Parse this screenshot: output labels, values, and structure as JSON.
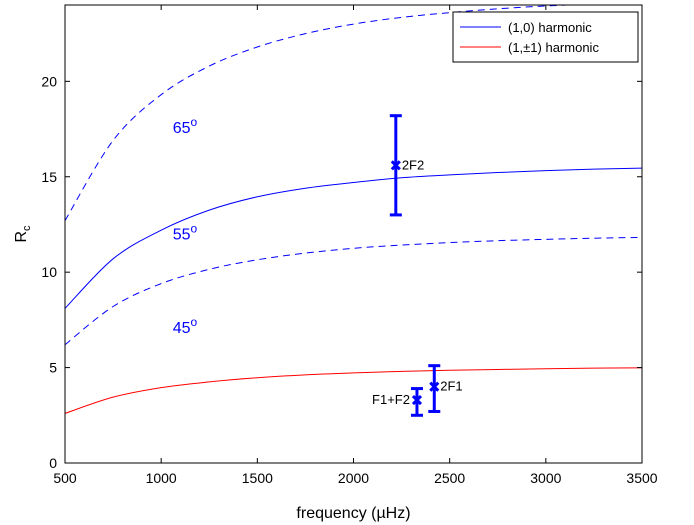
{
  "chart_data": {
    "type": "line",
    "title": "",
    "xlabel": "frequency (µHz)",
    "ylabel_main": "R",
    "ylabel_sub": "c",
    "xlim": [
      500,
      3500
    ],
    "ylim": [
      0,
      24
    ],
    "xticks": [
      500,
      1000,
      1500,
      2000,
      2500,
      3000,
      3500
    ],
    "yticks": [
      0,
      5,
      10,
      15,
      20
    ],
    "grid": false,
    "legend_position": "top-right",
    "colors": {
      "blue": "#0000ff",
      "red": "#ff0000"
    },
    "legend": [
      {
        "label": "(1,0) harmonic",
        "color": "#0000ff"
      },
      {
        "label": "(1,±1) harmonic",
        "color": "#ff0000"
      }
    ],
    "series": [
      {
        "group": "(1,0) harmonic",
        "angle": "65",
        "style": "dashed",
        "color": "#0000ff",
        "x": [
          500,
          750,
          1000,
          1250,
          1500,
          1750,
          2000,
          2250,
          2500,
          2750,
          3000,
          3250,
          3500
        ],
        "y": [
          12.7,
          16.9,
          19.3,
          20.8,
          21.8,
          22.5,
          23.0,
          23.35,
          23.6,
          23.8,
          23.95,
          24.05,
          24.1
        ]
      },
      {
        "group": "(1,0) harmonic",
        "angle": "55",
        "style": "solid",
        "color": "#0000ff",
        "x": [
          500,
          750,
          1000,
          1250,
          1500,
          1750,
          2000,
          2250,
          2500,
          2750,
          3000,
          3250,
          3500
        ],
        "y": [
          8.1,
          10.7,
          12.2,
          13.25,
          13.95,
          14.4,
          14.7,
          14.95,
          15.1,
          15.22,
          15.32,
          15.4,
          15.45
        ]
      },
      {
        "group": "(1,0) harmonic",
        "angle": "45",
        "style": "dashed",
        "color": "#0000ff",
        "x": [
          500,
          750,
          1000,
          1250,
          1500,
          1750,
          2000,
          2250,
          2500,
          2750,
          3000,
          3250,
          3500
        ],
        "y": [
          6.2,
          8.2,
          9.4,
          10.15,
          10.65,
          11.0,
          11.25,
          11.42,
          11.55,
          11.65,
          11.72,
          11.78,
          11.82
        ]
      },
      {
        "group": "(1,±1) harmonic",
        "style": "solid",
        "color": "#ff0000",
        "x": [
          500,
          750,
          1000,
          1250,
          1500,
          1750,
          2000,
          2250,
          2500,
          2750,
          3000,
          3250,
          3500
        ],
        "y": [
          2.6,
          3.45,
          3.95,
          4.25,
          4.47,
          4.62,
          4.72,
          4.8,
          4.86,
          4.9,
          4.94,
          4.97,
          4.99
        ]
      }
    ],
    "angle_labels": [
      {
        "text": "65",
        "sup": "o",
        "x": 1060,
        "y": 17.3
      },
      {
        "text": "55",
        "sup": "o",
        "x": 1060,
        "y": 11.7
      },
      {
        "text": "45",
        "sup": "o",
        "x": 1060,
        "y": 6.8
      }
    ],
    "error_bars": [
      {
        "label": "2F2",
        "x": 2220,
        "y": 15.6,
        "ylow": 13.0,
        "yhigh": 18.2,
        "label_side": "right"
      },
      {
        "label": "2F1",
        "x": 2420,
        "y": 4.0,
        "ylow": 2.7,
        "yhigh": 5.1,
        "label_side": "right"
      },
      {
        "label": "F1+F2",
        "x": 2330,
        "y": 3.3,
        "ylow": 2.5,
        "yhigh": 3.9,
        "label_side": "left"
      }
    ]
  }
}
